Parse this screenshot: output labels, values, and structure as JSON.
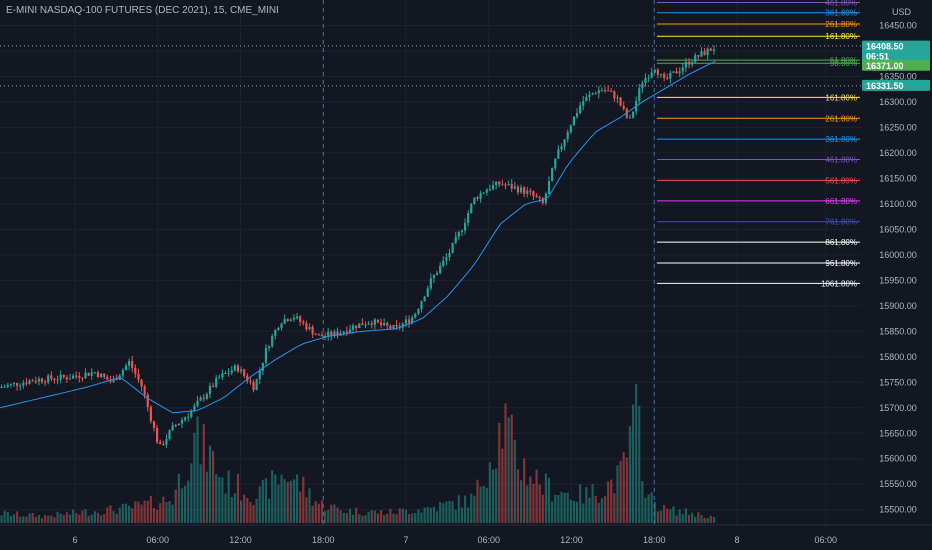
{
  "header": {
    "title": "E-MINI NASDAQ-100 FUTURES (DEC 2021), 15, CME_MINI",
    "currency": "USD"
  },
  "colors": {
    "background": "#131722",
    "up": "#26a69a",
    "down": "#ef5350",
    "ma": "#2196f3",
    "grid": "#1e222d",
    "axis_text": "#b2b5be"
  },
  "chart_data": {
    "type": "candlestick",
    "y_axis": {
      "range": [
        15470,
        16500
      ],
      "ticks": [
        "16450.00",
        "16400.00",
        "16350.00",
        "16300.00",
        "16250.00",
        "16200.00",
        "16150.00",
        "16100.00",
        "16050.00",
        "16000.00",
        "15950.00",
        "15900.00",
        "15850.00",
        "15800.00",
        "15750.00",
        "15700.00",
        "15650.00",
        "15600.00",
        "15550.00",
        "15500.00"
      ]
    },
    "x_axis": {
      "labels": [
        {
          "text": "6",
          "pos": 0.087
        },
        {
          "text": "06:00",
          "pos": 0.183
        },
        {
          "text": "12:00",
          "pos": 0.279
        },
        {
          "text": "18:00",
          "pos": 0.375
        },
        {
          "text": "7",
          "pos": 0.471
        },
        {
          "text": "06:00",
          "pos": 0.567
        },
        {
          "text": "12:00",
          "pos": 0.663
        },
        {
          "text": "18:00",
          "pos": 0.759
        },
        {
          "text": "8",
          "pos": 0.855
        },
        {
          "text": "06:00",
          "pos": 0.958
        }
      ],
      "session_lines": [
        0.375,
        0.759
      ]
    },
    "price_path": [
      [
        0,
        15740
      ],
      [
        0.04,
        15755
      ],
      [
        0.08,
        15760
      ],
      [
        0.11,
        15770
      ],
      [
        0.13,
        15750
      ],
      [
        0.15,
        15790
      ],
      [
        0.165,
        15740
      ],
      [
        0.185,
        15620
      ],
      [
        0.2,
        15660
      ],
      [
        0.22,
        15690
      ],
      [
        0.235,
        15720
      ],
      [
        0.255,
        15760
      ],
      [
        0.275,
        15780
      ],
      [
        0.295,
        15740
      ],
      [
        0.31,
        15820
      ],
      [
        0.325,
        15870
      ],
      [
        0.34,
        15880
      ],
      [
        0.355,
        15860
      ],
      [
        0.37,
        15840
      ],
      [
        0.39,
        15845
      ],
      [
        0.41,
        15860
      ],
      [
        0.43,
        15870
      ],
      [
        0.445,
        15860
      ],
      [
        0.46,
        15855
      ],
      [
        0.48,
        15880
      ],
      [
        0.5,
        15950
      ],
      [
        0.52,
        16000
      ],
      [
        0.535,
        16050
      ],
      [
        0.55,
        16110
      ],
      [
        0.565,
        16130
      ],
      [
        0.58,
        16140
      ],
      [
        0.6,
        16130
      ],
      [
        0.615,
        16120
      ],
      [
        0.63,
        16100
      ],
      [
        0.645,
        16190
      ],
      [
        0.66,
        16250
      ],
      [
        0.675,
        16300
      ],
      [
        0.69,
        16320
      ],
      [
        0.7,
        16325
      ],
      [
        0.715,
        16310
      ],
      [
        0.73,
        16260
      ],
      [
        0.745,
        16340
      ],
      [
        0.76,
        16370
      ],
      [
        0.77,
        16340
      ],
      [
        0.785,
        16360
      ],
      [
        0.8,
        16380
      ],
      [
        0.815,
        16395
      ],
      [
        0.83,
        16408
      ]
    ],
    "ma_path": [
      [
        0,
        15700
      ],
      [
        0.05,
        15720
      ],
      [
        0.1,
        15740
      ],
      [
        0.14,
        15760
      ],
      [
        0.17,
        15720
      ],
      [
        0.2,
        15690
      ],
      [
        0.23,
        15695
      ],
      [
        0.26,
        15720
      ],
      [
        0.29,
        15760
      ],
      [
        0.32,
        15795
      ],
      [
        0.35,
        15825
      ],
      [
        0.38,
        15840
      ],
      [
        0.42,
        15850
      ],
      [
        0.46,
        15855
      ],
      [
        0.49,
        15875
      ],
      [
        0.52,
        15920
      ],
      [
        0.55,
        15980
      ],
      [
        0.58,
        16060
      ],
      [
        0.61,
        16100
      ],
      [
        0.635,
        16110
      ],
      [
        0.66,
        16180
      ],
      [
        0.69,
        16240
      ],
      [
        0.72,
        16270
      ],
      [
        0.745,
        16300
      ],
      [
        0.77,
        16325
      ],
      [
        0.8,
        16355
      ],
      [
        0.83,
        16380
      ]
    ],
    "volume_path": [
      [
        0.0,
        14
      ],
      [
        0.05,
        10
      ],
      [
        0.1,
        16
      ],
      [
        0.15,
        22
      ],
      [
        0.2,
        35
      ],
      [
        0.225,
        120
      ],
      [
        0.245,
        95
      ],
      [
        0.26,
        60
      ],
      [
        0.3,
        40
      ],
      [
        0.33,
        72
      ],
      [
        0.35,
        55
      ],
      [
        0.37,
        28
      ],
      [
        0.4,
        18
      ],
      [
        0.45,
        15
      ],
      [
        0.5,
        22
      ],
      [
        0.55,
        35
      ],
      [
        0.585,
        150
      ],
      [
        0.6,
        90
      ],
      [
        0.63,
        55
      ],
      [
        0.66,
        42
      ],
      [
        0.68,
        40
      ],
      [
        0.7,
        50
      ],
      [
        0.72,
        68
      ],
      [
        0.74,
        160
      ],
      [
        0.75,
        40
      ],
      [
        0.77,
        20
      ],
      [
        0.8,
        15
      ],
      [
        0.83,
        8
      ]
    ],
    "volume_max": 170,
    "fib_levels": [
      {
        "label": "461.80%",
        "price": 16495,
        "color": "#7e57c2"
      },
      {
        "label": "361.80%",
        "price": 16475,
        "color": "#2196f3"
      },
      {
        "label": "261.80%",
        "price": 16453,
        "color": "#ff9800"
      },
      {
        "label": "161.80%",
        "price": 16429,
        "color": "#ffeb3b"
      },
      {
        "label": "61.80%",
        "price": 16382,
        "color": "#4caf50"
      },
      {
        "label": "50.00%",
        "price": 16376,
        "color": "#4caf50"
      },
      {
        "label": "161.80%",
        "price": 16309,
        "color": "#ffeb3b"
      },
      {
        "label": "261.80%",
        "price": 16268,
        "color": "#ff9800"
      },
      {
        "label": "361.80%",
        "price": 16227,
        "color": "#2196f3"
      },
      {
        "label": "461.80%",
        "price": 16187,
        "color": "#7e57c2"
      },
      {
        "label": "561.80%",
        "price": 16146,
        "color": "#ef5350"
      },
      {
        "label": "661.80%",
        "price": 16106,
        "color": "#e040fb"
      },
      {
        "label": "761.80%",
        "price": 16065,
        "color": "#3f51b5"
      },
      {
        "label": "861.80%",
        "price": 16025,
        "color": "#ffffff"
      },
      {
        "label": "961.80%",
        "price": 15984,
        "color": "#ffffff"
      },
      {
        "label": "1061.80%",
        "price": 15944,
        "color": "#ffffff"
      }
    ],
    "horizontal_lines": [
      {
        "price": 16410,
        "color": "#9598a1"
      },
      {
        "price": 16331.5,
        "color": "#9598a1"
      }
    ],
    "price_badges": [
      {
        "text": "16408.50",
        "sub": "06:51",
        "price": 16408.5,
        "color": "#26a69a"
      },
      {
        "text": "16371.00",
        "price": 16371,
        "color": "#4caf50"
      },
      {
        "text": "16331.50",
        "price": 16331.5,
        "color": "#26a69a"
      }
    ]
  }
}
